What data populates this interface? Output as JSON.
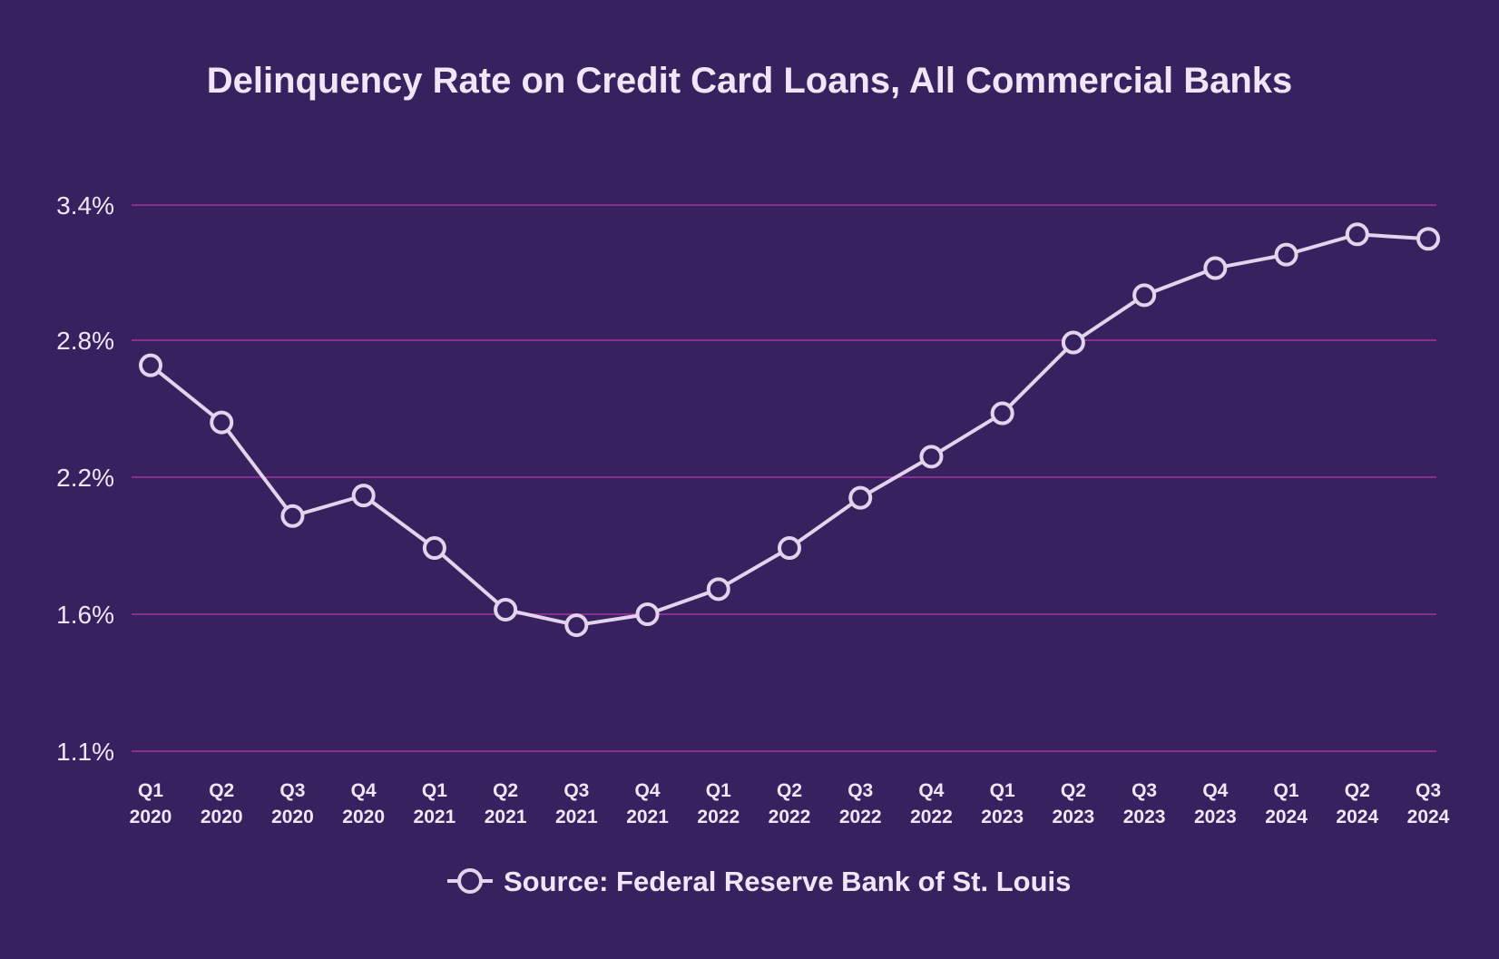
{
  "chart_data": {
    "type": "line",
    "title": "Delinquency Rate on Credit Card Loans, All Commercial Banks",
    "xlabel": "",
    "ylabel": "",
    "categories": [
      [
        "Q1",
        "2020"
      ],
      [
        "Q2",
        "2020"
      ],
      [
        "Q3",
        "2020"
      ],
      [
        "Q4",
        "2020"
      ],
      [
        "Q1",
        "2021"
      ],
      [
        "Q2",
        "2021"
      ],
      [
        "Q3",
        "2021"
      ],
      [
        "Q4",
        "2021"
      ],
      [
        "Q1",
        "2022"
      ],
      [
        "Q2",
        "2022"
      ],
      [
        "Q3",
        "2022"
      ],
      [
        "Q4",
        "2022"
      ],
      [
        "Q1",
        "2023"
      ],
      [
        "Q2",
        "2023"
      ],
      [
        "Q3",
        "2023"
      ],
      [
        "Q4",
        "2023"
      ],
      [
        "Q1",
        "2024"
      ],
      [
        "Q2",
        "2024"
      ],
      [
        "Q3",
        "2024"
      ]
    ],
    "series": [
      {
        "values": [
          2.69,
          2.44,
          2.03,
          2.12,
          1.89,
          1.62,
          1.56,
          1.6,
          1.71,
          1.89,
          2.11,
          2.29,
          2.48,
          2.79,
          3.0,
          3.12,
          3.18,
          3.27,
          3.25
        ]
      }
    ],
    "yticks": [
      1.1,
      1.6,
      2.2,
      2.8,
      3.4
    ],
    "ytick_labels": [
      "1.1%",
      "1.6%",
      "2.2%",
      "2.8%",
      "3.4%"
    ],
    "ylim": [
      1.1,
      3.4
    ],
    "grid": true,
    "legend": {
      "position": "bottom-center",
      "label": "Source: Federal Reserve Bank of St. Louis"
    },
    "colors": {
      "background": "#37225f",
      "line": "#e3d3ec",
      "marker_fill": "#37225f",
      "grid": "#8a2f92",
      "text": "#f1e6f7"
    }
  }
}
